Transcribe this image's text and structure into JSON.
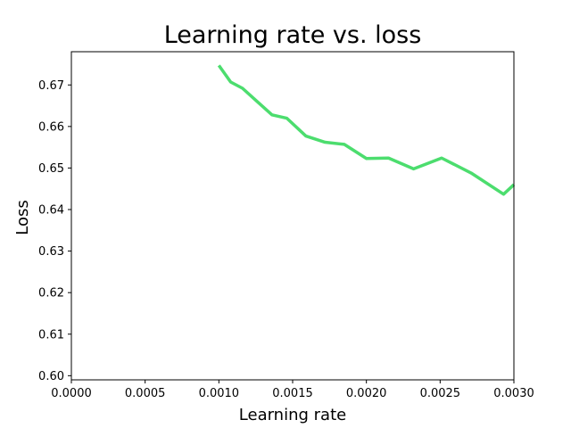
{
  "chart_data": {
    "type": "line",
    "title": "Learning rate vs. loss",
    "xlabel": "Learning rate",
    "ylabel": "Loss",
    "xlim": [
      0.0,
      0.003
    ],
    "ylim": [
      0.599,
      0.678
    ],
    "xticks": [
      "0.0000",
      "0.0005",
      "0.0010",
      "0.0015",
      "0.0020",
      "0.0025",
      "0.0030"
    ],
    "yticks": [
      "0.60",
      "0.61",
      "0.62",
      "0.63",
      "0.64",
      "0.65",
      "0.66",
      "0.67"
    ],
    "grid": false,
    "line_color": "#4cdd6e",
    "series": [
      {
        "x": [
          0.001,
          0.00108,
          0.00116,
          0.00126,
          0.00136,
          0.00146,
          0.00159,
          0.00172,
          0.00185,
          0.002,
          0.00215,
          0.00232,
          0.00251,
          0.00271,
          0.00293,
          0.003
        ],
        "y": [
          0.6747,
          0.6707,
          0.6692,
          0.666,
          0.6628,
          0.662,
          0.6577,
          0.6562,
          0.6557,
          0.6523,
          0.6524,
          0.6498,
          0.6524,
          0.6488,
          0.6437,
          0.646
        ]
      }
    ]
  }
}
